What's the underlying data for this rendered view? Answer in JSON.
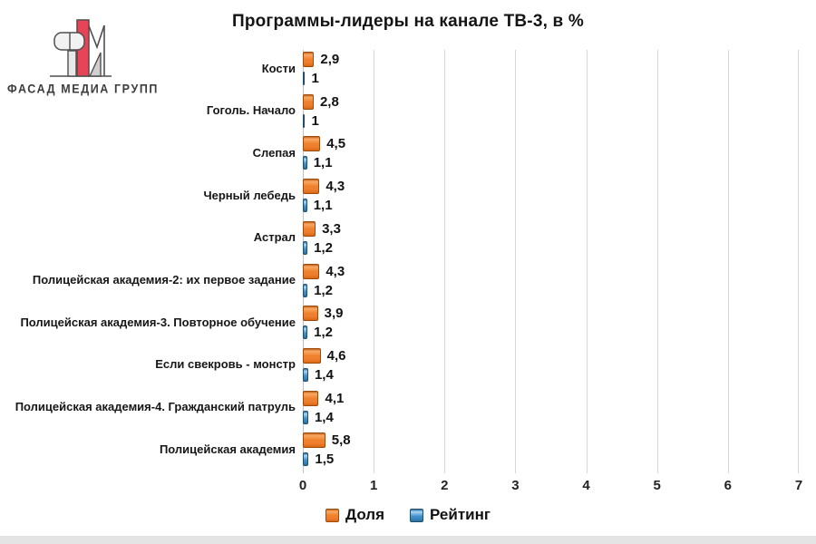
{
  "title": "Программы-лидеры на канале ТВ-3, в %",
  "logo": {
    "text": "ФАСАД МЕДИА ГРУПП"
  },
  "colors": {
    "share_orange": "#ED7D31",
    "rating_blue": "#3E8EC9",
    "gridline": "#D8D8D8",
    "logo_red": "#E64457",
    "footer_strip": "#E4E4E4"
  },
  "chart_data": {
    "type": "bar",
    "orientation": "horizontal",
    "title": "Программы-лидеры на канале ТВ-3, в %",
    "categories": [
      "Кости",
      "Гоголь. Начало",
      "Слепая",
      "Черный лебедь",
      "Астрал",
      "Полицейская академия-2: их первое задание",
      "Полицейская академия-3. Повторное обучение",
      "Если свекровь - монстр",
      "Полицейская академия-4. Гражданский патруль",
      "Полицейская академия"
    ],
    "series": [
      {
        "name": "Доля",
        "color": "#ED7D31",
        "values": [
          2.9,
          2.8,
          4.5,
          4.3,
          3.3,
          4.3,
          3.9,
          4.6,
          4.1,
          5.8
        ],
        "labels": [
          "2,9",
          "2,8",
          "4,5",
          "4,3",
          "3,3",
          "4,3",
          "3,9",
          "4,6",
          "4,1",
          "5,8"
        ]
      },
      {
        "name": "Рейтинг",
        "color": "#3E8EC9",
        "values": [
          1,
          1,
          1.1,
          1.1,
          1.2,
          1.2,
          1.2,
          1.4,
          1.4,
          1.5
        ],
        "labels": [
          "1",
          "1",
          "1,1",
          "1,1",
          "1,2",
          "1,2",
          "1,2",
          "1,4",
          "1,4",
          "1,5"
        ]
      }
    ],
    "xlim": [
      0,
      7
    ],
    "xticks": [
      "0",
      "1",
      "2",
      "3",
      "4",
      "5",
      "6",
      "7"
    ],
    "grid": "vertical",
    "legend_position": "bottom"
  }
}
